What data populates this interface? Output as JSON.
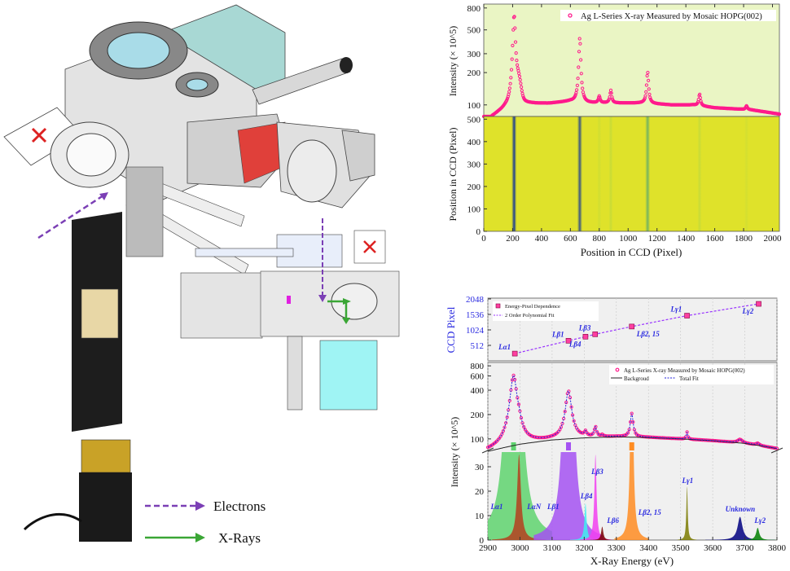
{
  "apparatus": {
    "legend": [
      {
        "label": "Electrons",
        "color": "#7b3fb5",
        "style": "dashed"
      },
      {
        "label": "X-Rays",
        "color": "#3aa635",
        "style": "solid"
      }
    ],
    "colors": {
      "window": "#a9dce8",
      "detector_box": "#a8d8d4",
      "seal_ring": "#e0403a",
      "gold_block": "#c9a227",
      "crystal_box": "#9ff4f4"
    }
  },
  "chart_data": [
    {
      "type": "line",
      "panel": "top-spectrum",
      "legend": "Ag L-Series X-ray Measured by Mosaic HOPG(002)",
      "legend_placement": "top-right",
      "ylabel": "Intensity (× 10^5)",
      "yscale": "log",
      "ylim": [
        78,
        870
      ],
      "yticks": [
        100,
        200,
        300,
        500,
        800
      ],
      "xlim": [
        0,
        2048
      ],
      "background": "#eaf5c4",
      "marker_color": "#ff1a8c",
      "baseline": [
        [
          0,
          65
        ],
        [
          60,
          78
        ],
        [
          150,
          92
        ],
        [
          260,
          102
        ],
        [
          450,
          103
        ],
        [
          600,
          108
        ],
        [
          700,
          104
        ],
        [
          1100,
          104
        ],
        [
          1300,
          100
        ],
        [
          1450,
          100
        ],
        [
          1600,
          94
        ],
        [
          1850,
          90
        ],
        [
          2048,
          82
        ]
      ],
      "peaks": [
        {
          "x": 210,
          "height": 680
        },
        {
          "x": 665,
          "height": 420
        },
        {
          "x": 800,
          "height": 120
        },
        {
          "x": 880,
          "height": 136
        },
        {
          "x": 1135,
          "height": 202
        },
        {
          "x": 1495,
          "height": 126
        },
        {
          "x": 1820,
          "height": 98
        }
      ]
    },
    {
      "type": "heatmap",
      "panel": "ccd-image",
      "xlabel": "Position in CCD (Pixel)",
      "ylabel": "Position in CCD (Pixel)",
      "xlim": [
        0,
        2048
      ],
      "ylim": [
        0,
        512
      ],
      "xticks": [
        0,
        200,
        400,
        600,
        800,
        1000,
        1200,
        1400,
        1600,
        1800,
        2000
      ],
      "yticks": [
        0,
        100,
        200,
        300,
        400,
        500
      ],
      "background_color": "#dfe22a",
      "lines": [
        {
          "x": 210,
          "intensity": 1.0
        },
        {
          "x": 665,
          "intensity": 0.85
        },
        {
          "x": 800,
          "intensity": 0.15
        },
        {
          "x": 880,
          "intensity": 0.25
        },
        {
          "x": 1135,
          "intensity": 0.55
        },
        {
          "x": 1495,
          "intensity": 0.25
        },
        {
          "x": 1820,
          "intensity": 0.12
        }
      ]
    },
    {
      "type": "scatter",
      "panel": "energy-pixel",
      "ylabel": "CCD Pixel",
      "ylim": [
        0,
        2048
      ],
      "yticks": [
        512,
        1024,
        1536,
        2048
      ],
      "xlim": [
        2900,
        3800
      ],
      "legend": [
        "Energy-Pixel Dependence",
        "2 Order Polynomial Fit"
      ],
      "legend_placement": "top-left",
      "points": [
        {
          "label": "Lα1",
          "energy": 2984,
          "pixel": 240
        },
        {
          "label": "Lβ1",
          "energy": 3151,
          "pixel": 665
        },
        {
          "label": "Lβ4",
          "energy": 3204,
          "pixel": 800
        },
        {
          "label": "Lβ3",
          "energy": 3234,
          "pixel": 880
        },
        {
          "label": "Lβ2, 15",
          "energy": 3348,
          "pixel": 1135
        },
        {
          "label": "Lγ1",
          "energy": 3520,
          "pixel": 1495
        },
        {
          "label": "Lγ2",
          "energy": 3743,
          "pixel": 1885
        }
      ]
    },
    {
      "type": "line",
      "panel": "fitted-spectrum",
      "ylabel": "Intensity (× 10^5)",
      "xlabel": "X-Ray Energy (eV)",
      "xlim": [
        2900,
        3800
      ],
      "xticks": [
        2900,
        3000,
        3100,
        3200,
        3300,
        3400,
        3500,
        3600,
        3700,
        3800
      ],
      "upper_yscale": "log",
      "upper_ylim": [
        72,
        860
      ],
      "upper_yticks": [
        100,
        200,
        400,
        600,
        800
      ],
      "lower_ylim": [
        0,
        36
      ],
      "lower_yticks": [
        0,
        10,
        20,
        30
      ],
      "legend": [
        "Ag L-Series X-ray Measured by Mosaic HOPG(002)",
        "Backgroud",
        "Total Fit"
      ],
      "legend_placement": "top-right",
      "background": [
        [
          2900,
          70
        ],
        [
          3000,
          86
        ],
        [
          3100,
          97
        ],
        [
          3200,
          103
        ],
        [
          3300,
          106
        ],
        [
          3400,
          104
        ],
        [
          3500,
          100
        ],
        [
          3600,
          95
        ],
        [
          3700,
          88
        ],
        [
          3800,
          76
        ]
      ],
      "components": [
        {
          "label": "Lα1",
          "center": 2980,
          "height": 520,
          "width": 10,
          "color": "#5fd36f"
        },
        {
          "label": "LαN",
          "center": 2997,
          "height": 35,
          "width": 7,
          "color": "#b5401f"
        },
        {
          "label": "Lβ1",
          "center": 3151,
          "height": 290,
          "width": 9,
          "color": "#a552f2"
        },
        {
          "label": "Lβ4",
          "center": 3204,
          "height": 15,
          "width": 4,
          "color": "#3ef0f0"
        },
        {
          "label": "Lβ3",
          "center": 3235,
          "height": 35,
          "width": 4,
          "color": "#f240f0"
        },
        {
          "label": "Lβ6",
          "center": 3256,
          "height": 5.5,
          "width": 4,
          "color": "#7a0000"
        },
        {
          "label": "Lβ2, 15",
          "center": 3348,
          "height": 100,
          "width": 4.5,
          "color": "#ff8c22"
        },
        {
          "label": "Lγ1",
          "center": 3520,
          "height": 22,
          "width": 2.5,
          "color": "#7a7a00"
        },
        {
          "label": "Unknown",
          "center": 3685,
          "height": 9.5,
          "width": 9,
          "color": "#000080"
        },
        {
          "label": "Lγ2",
          "center": 3740,
          "height": 5,
          "width": 6,
          "color": "#008000"
        }
      ]
    }
  ]
}
